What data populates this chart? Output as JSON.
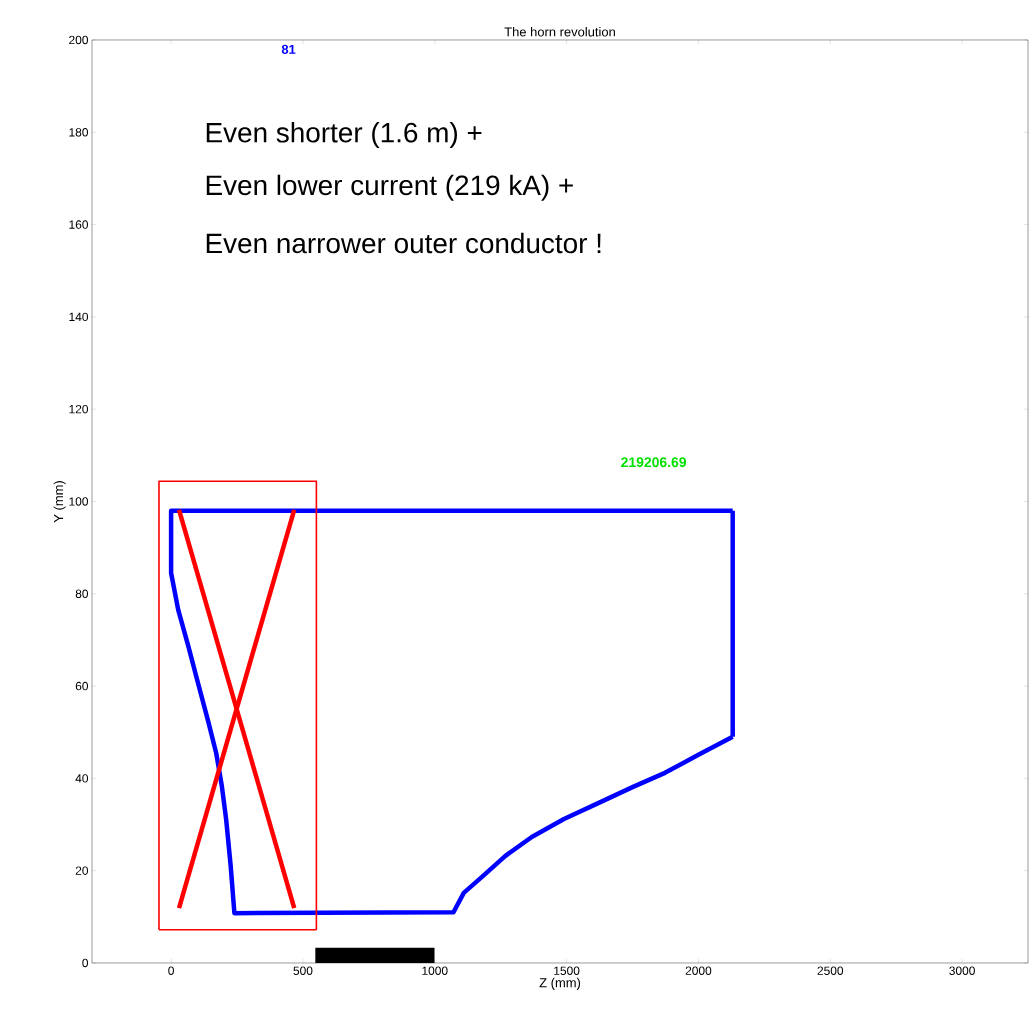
{
  "chart_data": {
    "type": "line",
    "title": "The horn revolution",
    "xlabel": "Z (mm)",
    "ylabel": "Y (mm)",
    "xlim": [
      -300,
      3250
    ],
    "ylim": [
      0,
      200
    ],
    "xticks": [
      0,
      500,
      1000,
      1500,
      2000,
      2500,
      3000
    ],
    "yticks": [
      0,
      20,
      40,
      60,
      80,
      100,
      120,
      140,
      160,
      180,
      200
    ],
    "grid": false,
    "marker": "none",
    "line_style": "solid",
    "annotations": [
      "81",
      "219206.69",
      "Even shorter (1.6 m) +",
      "Even lower current (219 kA) +",
      "Even narrower outer conductor !"
    ],
    "series": [
      {
        "color": "#0000ff",
        "x": [
          2130,
          0,
          0,
          27,
          66,
          106,
          140,
          171,
          192,
          209,
          226,
          240,
          1071,
          1110,
          1178,
          1268,
          1368,
          1490,
          1622,
          1750,
          1873,
          2000,
          2130
        ],
        "values": [
          98,
          98,
          84.5,
          76.5,
          68.5,
          59.8,
          52.5,
          45.5,
          38.5,
          31,
          21,
          10.8,
          11,
          15.2,
          18.6,
          23.2,
          27.3,
          31.2,
          34.7,
          38.1,
          41.2,
          45.1,
          49
        ]
      },
      {
        "color": "#0000ff",
        "x": [
          2130,
          2130
        ],
        "values": [
          49,
          98
        ]
      },
      {
        "color": "#ff0000",
        "x": [
          30,
          467
        ],
        "values": [
          11.9,
          98.2
        ]
      },
      {
        "color": "#ff0000",
        "x": [
          30,
          467
        ],
        "values": [
          98.2,
          11.9
        ]
      },
      {
        "color": "#ff0000",
        "x": [
          -46,
          -46,
          551,
          551
        ],
        "values": [
          7.2,
          104.4,
          104.4,
          7.2
        ]
      },
      {
        "color": "#ff0000",
        "x": [
          -46,
          551
        ],
        "values": [
          7.2,
          7.2
        ]
      },
      {
        "type": "area",
        "color": "#000000",
        "x": [
          547,
          999
        ],
        "values": [
          3.3,
          3.3
        ]
      }
    ]
  }
}
